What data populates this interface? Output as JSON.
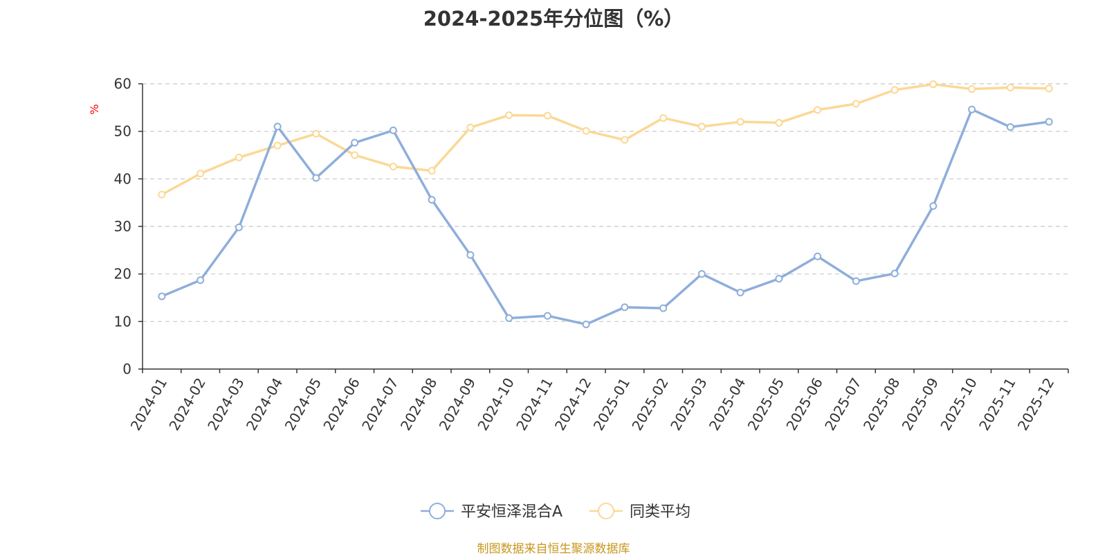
{
  "chart_data": {
    "type": "line",
    "title": "2024-2025年分位图（%）",
    "ylabel": "%",
    "xlabel": "",
    "ylim": [
      0,
      60
    ],
    "yticks": [
      0,
      10,
      20,
      30,
      40,
      50,
      60
    ],
    "grid": true,
    "legend_position": "bottom-center",
    "categories": [
      "2024-01",
      "2024-02",
      "2024-03",
      "2024-04",
      "2024-05",
      "2024-06",
      "2024-07",
      "2024-08",
      "2024-09",
      "2024-10",
      "2024-11",
      "2024-12",
      "2025-01",
      "2025-02",
      "2025-03",
      "2025-04",
      "2025-05",
      "2025-06",
      "2025-07",
      "2025-08",
      "2025-09",
      "2025-10",
      "2025-11",
      "2025-12"
    ],
    "series": [
      {
        "name": "平安恒泽混合A",
        "color": "#8eaedb",
        "values": [
          15.3,
          18.7,
          29.8,
          51.0,
          40.2,
          47.6,
          50.2,
          35.6,
          24.0,
          10.7,
          11.2,
          9.4,
          13.0,
          12.8,
          20.0,
          16.1,
          19.0,
          23.7,
          18.5,
          20.1,
          34.3,
          54.6,
          50.9,
          52.0
        ]
      },
      {
        "name": "同类平均",
        "color": "#fbd896",
        "values": [
          36.7,
          41.1,
          44.5,
          47.0,
          49.5,
          45.0,
          42.6,
          41.7,
          50.8,
          53.4,
          53.3,
          50.1,
          48.2,
          52.8,
          51.0,
          52.0,
          51.8,
          54.5,
          55.8,
          58.7,
          59.9,
          58.9,
          59.2,
          59.0
        ]
      }
    ]
  },
  "source": "制图数据来自恒生聚源数据库"
}
